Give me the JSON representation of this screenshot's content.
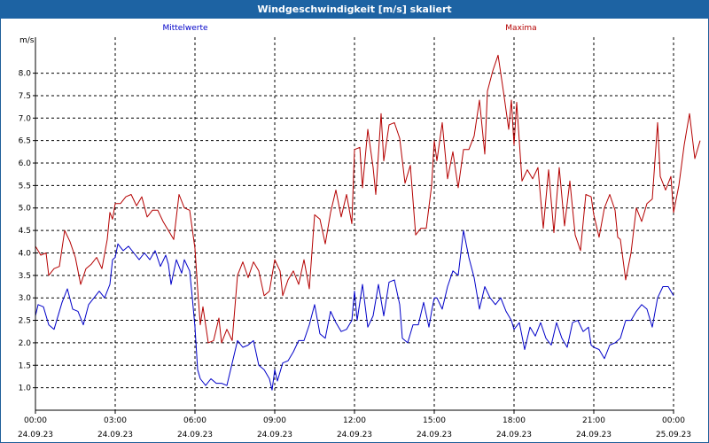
{
  "title": "Windgeschwindigkeit [m/s] skaliert",
  "chart_data": {
    "type": "line",
    "title": "Windgeschwindigkeit [m/s] skaliert",
    "ylabel": "m/s",
    "xlabel": "",
    "ylim": [
      0.5,
      8.8
    ],
    "grid": true,
    "legend": "top",
    "y_ticks": [
      "1.0",
      "1.5",
      "2.0",
      "2.5",
      "3.0",
      "3.5",
      "4.0",
      "4.5",
      "5.0",
      "5.5",
      "6.0",
      "6.5",
      "7.0",
      "7.5",
      "8.0"
    ],
    "x_ticks": [
      {
        "time": "00:00",
        "date": "24.09.23"
      },
      {
        "time": "03:00",
        "date": "24.09.23"
      },
      {
        "time": "06:00",
        "date": "24.09.23"
      },
      {
        "time": "09:00",
        "date": "24.09.23"
      },
      {
        "time": "12:00",
        "date": "24.09.23"
      },
      {
        "time": "15:00",
        "date": "24.09.23"
      },
      {
        "time": "18:00",
        "date": "24.09.23"
      },
      {
        "time": "21:00",
        "date": "24.09.23"
      },
      {
        "time": "00:00",
        "date": "25.09.23"
      }
    ],
    "series": [
      {
        "name": "Mittelwerte",
        "color": "#0000c8",
        "points": [
          [
            0,
            2.6
          ],
          [
            0.1,
            2.85
          ],
          [
            0.3,
            2.8
          ],
          [
            0.5,
            2.4
          ],
          [
            0.7,
            2.3
          ],
          [
            1.0,
            2.9
          ],
          [
            1.2,
            3.2
          ],
          [
            1.4,
            2.75
          ],
          [
            1.6,
            2.7
          ],
          [
            1.8,
            2.4
          ],
          [
            2.0,
            2.85
          ],
          [
            2.2,
            3.0
          ],
          [
            2.4,
            3.15
          ],
          [
            2.6,
            3.0
          ],
          [
            2.8,
            3.3
          ],
          [
            2.9,
            3.85
          ],
          [
            3.0,
            3.9
          ],
          [
            3.1,
            4.2
          ],
          [
            3.3,
            4.05
          ],
          [
            3.5,
            4.15
          ],
          [
            3.7,
            4.0
          ],
          [
            3.9,
            3.85
          ],
          [
            4.1,
            4.0
          ],
          [
            4.3,
            3.85
          ],
          [
            4.5,
            4.05
          ],
          [
            4.7,
            3.7
          ],
          [
            4.9,
            3.95
          ],
          [
            5.0,
            3.75
          ],
          [
            5.1,
            3.3
          ],
          [
            5.3,
            3.85
          ],
          [
            5.5,
            3.55
          ],
          [
            5.6,
            3.85
          ],
          [
            5.8,
            3.6
          ],
          [
            5.9,
            3.0
          ],
          [
            6.0,
            2.35
          ],
          [
            6.1,
            1.4
          ],
          [
            6.2,
            1.2
          ],
          [
            6.4,
            1.05
          ],
          [
            6.6,
            1.2
          ],
          [
            6.8,
            1.1
          ],
          [
            7.0,
            1.1
          ],
          [
            7.2,
            1.05
          ],
          [
            7.4,
            1.55
          ],
          [
            7.6,
            2.05
          ],
          [
            7.8,
            1.9
          ],
          [
            8.0,
            1.95
          ],
          [
            8.2,
            2.05
          ],
          [
            8.4,
            1.5
          ],
          [
            8.6,
            1.4
          ],
          [
            8.8,
            1.2
          ],
          [
            8.9,
            0.95
          ],
          [
            9.0,
            1.4
          ],
          [
            9.1,
            1.15
          ],
          [
            9.3,
            1.55
          ],
          [
            9.5,
            1.6
          ],
          [
            9.7,
            1.8
          ],
          [
            9.9,
            2.05
          ],
          [
            10.1,
            2.05
          ],
          [
            10.3,
            2.4
          ],
          [
            10.5,
            2.85
          ],
          [
            10.7,
            2.2
          ],
          [
            10.9,
            2.1
          ],
          [
            11.1,
            2.7
          ],
          [
            11.3,
            2.45
          ],
          [
            11.5,
            2.25
          ],
          [
            11.7,
            2.3
          ],
          [
            11.9,
            2.5
          ],
          [
            12.0,
            3.15
          ],
          [
            12.1,
            2.5
          ],
          [
            12.3,
            3.3
          ],
          [
            12.5,
            2.35
          ],
          [
            12.7,
            2.6
          ],
          [
            12.9,
            3.3
          ],
          [
            13.1,
            2.6
          ],
          [
            13.3,
            3.35
          ],
          [
            13.5,
            3.4
          ],
          [
            13.7,
            2.85
          ],
          [
            13.8,
            2.1
          ],
          [
            14.0,
            2.0
          ],
          [
            14.2,
            2.4
          ],
          [
            14.4,
            2.4
          ],
          [
            14.6,
            2.9
          ],
          [
            14.8,
            2.35
          ],
          [
            14.9,
            2.7
          ],
          [
            15.0,
            3.0
          ],
          [
            15.1,
            3.0
          ],
          [
            15.3,
            2.75
          ],
          [
            15.5,
            3.25
          ],
          [
            15.7,
            3.6
          ],
          [
            15.9,
            3.5
          ],
          [
            16.1,
            4.5
          ],
          [
            16.3,
            3.9
          ],
          [
            16.5,
            3.45
          ],
          [
            16.7,
            2.75
          ],
          [
            16.9,
            3.25
          ],
          [
            17.1,
            3.0
          ],
          [
            17.3,
            2.85
          ],
          [
            17.5,
            3.0
          ],
          [
            17.7,
            2.7
          ],
          [
            17.9,
            2.5
          ],
          [
            18.0,
            2.3
          ],
          [
            18.2,
            2.45
          ],
          [
            18.4,
            1.85
          ],
          [
            18.6,
            2.35
          ],
          [
            18.8,
            2.15
          ],
          [
            19.0,
            2.45
          ],
          [
            19.2,
            2.1
          ],
          [
            19.4,
            1.95
          ],
          [
            19.6,
            2.45
          ],
          [
            19.8,
            2.1
          ],
          [
            20.0,
            1.9
          ],
          [
            20.2,
            2.45
          ],
          [
            20.4,
            2.5
          ],
          [
            20.6,
            2.25
          ],
          [
            20.8,
            2.35
          ],
          [
            20.9,
            1.95
          ],
          [
            21.0,
            1.9
          ],
          [
            21.2,
            1.85
          ],
          [
            21.4,
            1.65
          ],
          [
            21.6,
            1.95
          ],
          [
            21.8,
            2.0
          ],
          [
            22.0,
            2.1
          ],
          [
            22.2,
            2.5
          ],
          [
            22.4,
            2.5
          ],
          [
            22.6,
            2.7
          ],
          [
            22.8,
            2.85
          ],
          [
            23.0,
            2.75
          ],
          [
            23.2,
            2.35
          ],
          [
            23.4,
            3.0
          ],
          [
            23.6,
            3.25
          ],
          [
            23.8,
            3.25
          ],
          [
            24.0,
            3.05
          ]
        ]
      },
      {
        "name": "Maxima",
        "color": "#b40000",
        "points": [
          [
            0,
            4.15
          ],
          [
            0.2,
            3.95
          ],
          [
            0.4,
            4.0
          ],
          [
            0.5,
            3.5
          ],
          [
            0.7,
            3.65
          ],
          [
            0.9,
            3.7
          ],
          [
            1.1,
            4.5
          ],
          [
            1.3,
            4.25
          ],
          [
            1.5,
            3.9
          ],
          [
            1.7,
            3.3
          ],
          [
            1.9,
            3.65
          ],
          [
            2.1,
            3.75
          ],
          [
            2.3,
            3.9
          ],
          [
            2.5,
            3.65
          ],
          [
            2.7,
            4.3
          ],
          [
            2.8,
            4.9
          ],
          [
            2.9,
            4.75
          ],
          [
            3.0,
            5.1
          ],
          [
            3.2,
            5.1
          ],
          [
            3.4,
            5.25
          ],
          [
            3.6,
            5.3
          ],
          [
            3.8,
            5.05
          ],
          [
            4.0,
            5.25
          ],
          [
            4.2,
            4.8
          ],
          [
            4.4,
            4.95
          ],
          [
            4.6,
            4.95
          ],
          [
            4.8,
            4.7
          ],
          [
            5.0,
            4.5
          ],
          [
            5.2,
            4.3
          ],
          [
            5.4,
            5.3
          ],
          [
            5.6,
            5.0
          ],
          [
            5.8,
            4.95
          ],
          [
            6.0,
            4.1
          ],
          [
            6.1,
            3.2
          ],
          [
            6.2,
            2.4
          ],
          [
            6.3,
            2.8
          ],
          [
            6.5,
            2.0
          ],
          [
            6.7,
            2.05
          ],
          [
            6.9,
            2.55
          ],
          [
            7.0,
            2.0
          ],
          [
            7.2,
            2.3
          ],
          [
            7.4,
            2.05
          ],
          [
            7.6,
            3.5
          ],
          [
            7.8,
            3.8
          ],
          [
            8.0,
            3.45
          ],
          [
            8.2,
            3.8
          ],
          [
            8.4,
            3.6
          ],
          [
            8.6,
            3.05
          ],
          [
            8.8,
            3.15
          ],
          [
            8.9,
            3.5
          ],
          [
            9.0,
            3.85
          ],
          [
            9.2,
            3.6
          ],
          [
            9.3,
            3.05
          ],
          [
            9.5,
            3.4
          ],
          [
            9.7,
            3.6
          ],
          [
            9.9,
            3.3
          ],
          [
            10.1,
            3.85
          ],
          [
            10.3,
            3.2
          ],
          [
            10.5,
            4.85
          ],
          [
            10.7,
            4.75
          ],
          [
            10.9,
            4.2
          ],
          [
            11.1,
            4.9
          ],
          [
            11.3,
            5.4
          ],
          [
            11.5,
            4.8
          ],
          [
            11.7,
            5.3
          ],
          [
            11.9,
            4.65
          ],
          [
            12.0,
            6.3
          ],
          [
            12.2,
            6.35
          ],
          [
            12.3,
            5.45
          ],
          [
            12.5,
            6.75
          ],
          [
            12.7,
            5.9
          ],
          [
            12.8,
            5.3
          ],
          [
            13.0,
            7.1
          ],
          [
            13.1,
            6.05
          ],
          [
            13.3,
            6.85
          ],
          [
            13.5,
            6.9
          ],
          [
            13.7,
            6.55
          ],
          [
            13.9,
            5.55
          ],
          [
            14.1,
            5.95
          ],
          [
            14.3,
            4.4
          ],
          [
            14.5,
            4.55
          ],
          [
            14.7,
            4.55
          ],
          [
            14.9,
            5.5
          ],
          [
            15.0,
            6.5
          ],
          [
            15.1,
            6.05
          ],
          [
            15.3,
            6.9
          ],
          [
            15.5,
            5.65
          ],
          [
            15.7,
            6.25
          ],
          [
            15.9,
            5.45
          ],
          [
            16.1,
            6.3
          ],
          [
            16.3,
            6.3
          ],
          [
            16.5,
            6.6
          ],
          [
            16.7,
            7.4
          ],
          [
            16.9,
            6.2
          ],
          [
            17.0,
            7.6
          ],
          [
            17.2,
            8.05
          ],
          [
            17.4,
            8.4
          ],
          [
            17.6,
            7.6
          ],
          [
            17.8,
            6.75
          ],
          [
            17.9,
            7.4
          ],
          [
            18.0,
            6.4
          ],
          [
            18.1,
            7.35
          ],
          [
            18.3,
            5.6
          ],
          [
            18.5,
            5.85
          ],
          [
            18.7,
            5.65
          ],
          [
            18.9,
            5.9
          ],
          [
            19.1,
            4.55
          ],
          [
            19.3,
            5.85
          ],
          [
            19.5,
            4.45
          ],
          [
            19.7,
            5.9
          ],
          [
            19.9,
            4.6
          ],
          [
            20.1,
            5.6
          ],
          [
            20.3,
            4.4
          ],
          [
            20.5,
            4.05
          ],
          [
            20.7,
            5.3
          ],
          [
            20.9,
            5.25
          ],
          [
            21.0,
            4.85
          ],
          [
            21.2,
            4.35
          ],
          [
            21.4,
            5.0
          ],
          [
            21.6,
            5.3
          ],
          [
            21.8,
            4.95
          ],
          [
            21.9,
            4.35
          ],
          [
            22.0,
            4.3
          ],
          [
            22.2,
            3.4
          ],
          [
            22.4,
            4.0
          ],
          [
            22.6,
            5.0
          ],
          [
            22.8,
            4.7
          ],
          [
            23.0,
            5.1
          ],
          [
            23.2,
            5.2
          ],
          [
            23.4,
            6.9
          ],
          [
            23.5,
            5.7
          ],
          [
            23.7,
            5.4
          ],
          [
            23.9,
            5.7
          ],
          [
            24.0,
            4.9
          ],
          [
            24.2,
            5.5
          ],
          [
            24.4,
            6.4
          ],
          [
            24.6,
            7.1
          ],
          [
            24.8,
            6.1
          ],
          [
            25.0,
            6.5
          ]
        ]
      }
    ]
  }
}
